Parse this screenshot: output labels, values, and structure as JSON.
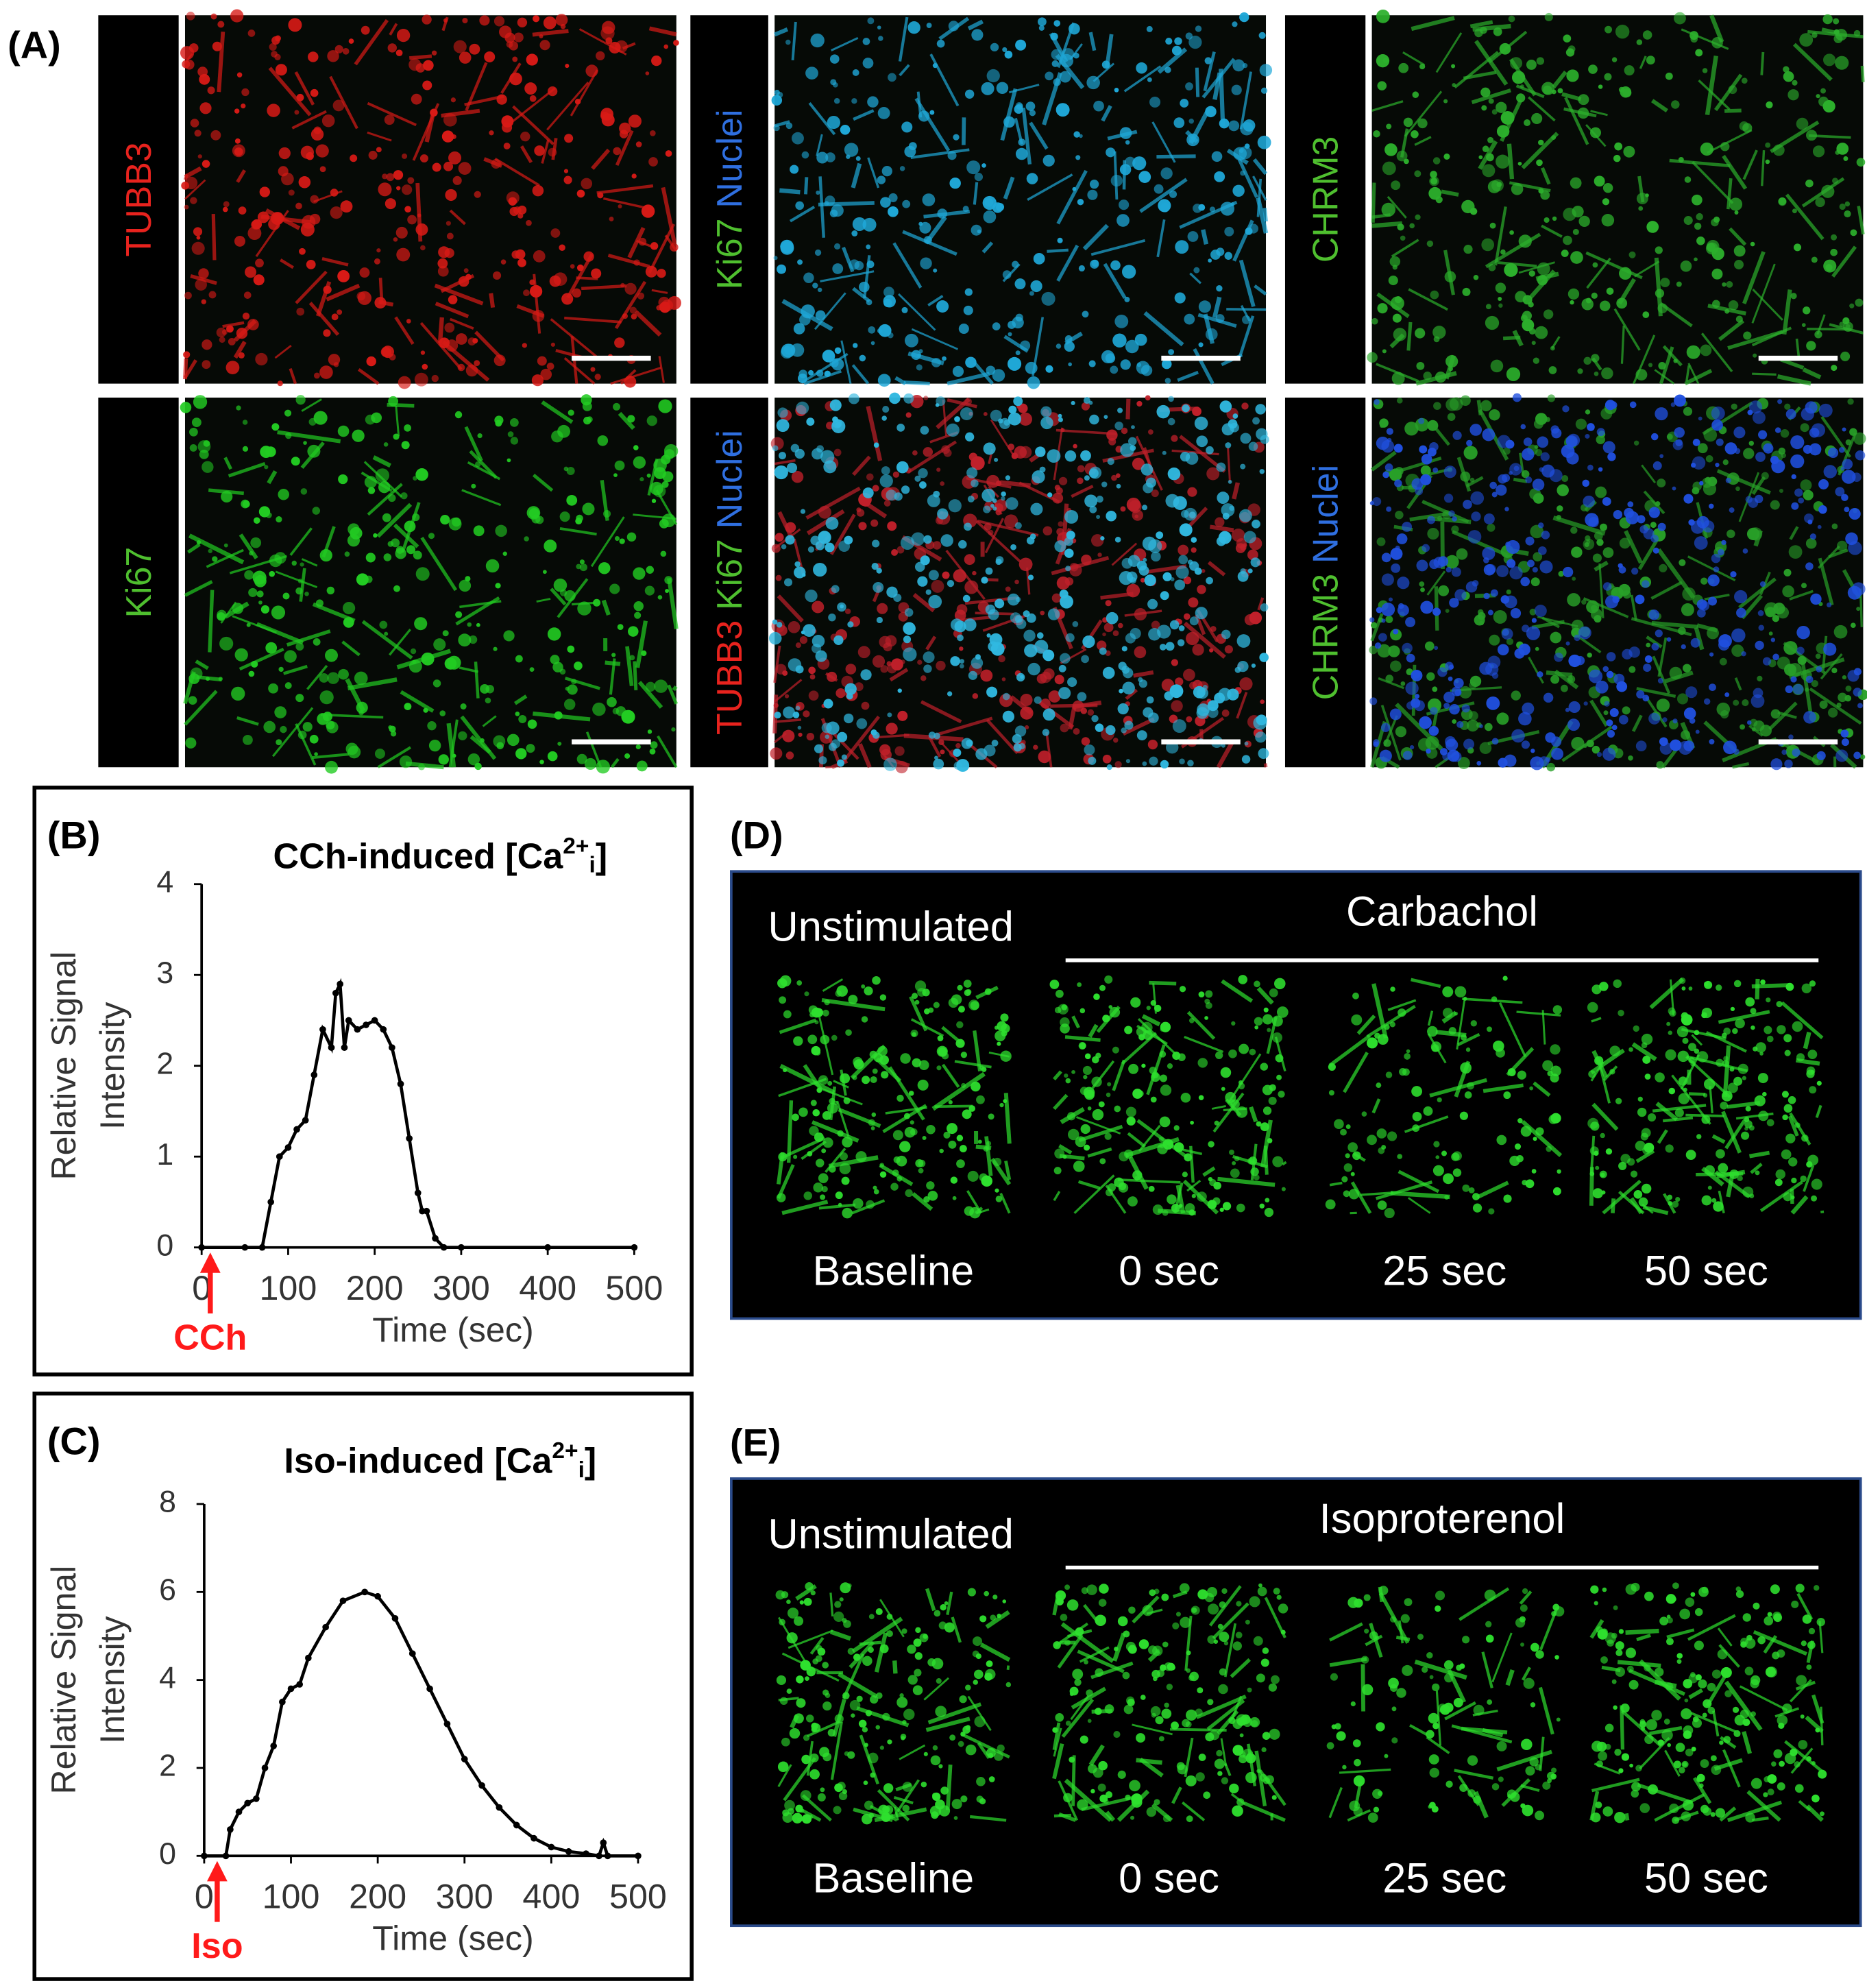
{
  "panel_a": {
    "label": "(A)",
    "images": [
      {
        "stains": [
          {
            "text": "TUBB3",
            "color": "#e8231e"
          }
        ],
        "tint": [
          "#d81a16"
        ]
      },
      {
        "stains": [
          {
            "text": "Ki67",
            "color": "#4fbf2f"
          },
          {
            "text": "Nuclei",
            "color": "#2f6fe0"
          }
        ],
        "tint": [
          "#1fa8d8"
        ]
      },
      {
        "stains": [
          {
            "text": "CHRM3",
            "color": "#4fbf2f"
          }
        ],
        "tint": [
          "#2cb02c"
        ]
      },
      {
        "stains": [
          {
            "text": "Ki67",
            "color": "#4fbf2f"
          }
        ],
        "tint": [
          "#22cc22"
        ]
      },
      {
        "stains": [
          {
            "text": "TUBB3",
            "color": "#e8231e"
          },
          {
            "text": "Ki67",
            "color": "#4fbf2f"
          },
          {
            "text": "Nuclei",
            "color": "#2f6fe0"
          }
        ],
        "tint": [
          "#c0202a",
          "#30b8e0"
        ]
      },
      {
        "stains": [
          {
            "text": "CHRM3",
            "color": "#4fbf2f"
          },
          {
            "text": "Nuclei",
            "color": "#2f6fe0"
          }
        ],
        "tint": [
          "#28a028",
          "#2050e0"
        ]
      }
    ]
  },
  "chart_data": [
    {
      "type": "line",
      "panel_label": "(B)",
      "title": [
        "CCh-induced [Ca",
        "2+",
        "i",
        "]"
      ],
      "ylabel": [
        "Relative Signal",
        "Intensity"
      ],
      "xlabel": "Time (sec)",
      "annotation": {
        "text": "CCh",
        "x": 10,
        "color": "#ff1a1a"
      },
      "xlim": [
        0,
        500
      ],
      "xticks": [
        0,
        100,
        200,
        300,
        400,
        500
      ],
      "ylim": [
        0,
        4
      ],
      "yticks": [
        0,
        1,
        2,
        3,
        4
      ],
      "color": "#000000",
      "x": [
        0,
        50,
        70,
        80,
        90,
        100,
        110,
        120,
        130,
        140,
        150,
        155,
        160,
        165,
        170,
        180,
        190,
        200,
        210,
        220,
        230,
        240,
        250,
        255,
        260,
        270,
        280,
        300,
        400,
        500
      ],
      "values": [
        0,
        0,
        0,
        0.5,
        1.0,
        1.1,
        1.3,
        1.4,
        1.9,
        2.4,
        2.2,
        2.8,
        2.9,
        2.2,
        2.5,
        2.4,
        2.45,
        2.5,
        2.4,
        2.2,
        1.8,
        1.2,
        0.6,
        0.4,
        0.4,
        0.1,
        0,
        0,
        0,
        0
      ]
    },
    {
      "type": "line",
      "panel_label": "(C)",
      "title": [
        "Iso-induced [Ca",
        "2+",
        "i",
        "]"
      ],
      "ylabel": [
        "Relative Signal",
        "Intensity"
      ],
      "xlabel": "Time (sec)",
      "annotation": {
        "text": "Iso",
        "x": 15,
        "color": "#ff1a1a"
      },
      "xlim": [
        0,
        500
      ],
      "xticks": [
        0,
        100,
        200,
        300,
        400,
        500
      ],
      "ylim": [
        0,
        8
      ],
      "yticks": [
        0,
        2,
        4,
        6,
        8
      ],
      "color": "#000000",
      "x": [
        0,
        25,
        30,
        40,
        50,
        60,
        70,
        80,
        90,
        100,
        110,
        120,
        140,
        160,
        185,
        200,
        220,
        240,
        260,
        280,
        300,
        320,
        340,
        360,
        380,
        400,
        420,
        440,
        455,
        460,
        465,
        500
      ],
      "values": [
        0,
        0,
        0.6,
        1.0,
        1.2,
        1.3,
        2.0,
        2.5,
        3.5,
        3.8,
        3.9,
        4.5,
        5.2,
        5.8,
        6.0,
        5.9,
        5.4,
        4.6,
        3.8,
        3.0,
        2.2,
        1.6,
        1.1,
        0.7,
        0.4,
        0.2,
        0.1,
        0.05,
        0,
        0.3,
        0,
        0
      ]
    }
  ],
  "panel_d": {
    "label": "(D)",
    "unstimulated": "Unstimulated",
    "stimulus": "Carbachol",
    "frames": [
      "Baseline",
      "0 sec",
      "25 sec",
      "50 sec"
    ]
  },
  "panel_e": {
    "label": "(E)",
    "unstimulated": "Unstimulated",
    "stimulus": "Isoproterenol",
    "frames": [
      "Baseline",
      "0 sec",
      "25 sec",
      "50 sec"
    ]
  }
}
